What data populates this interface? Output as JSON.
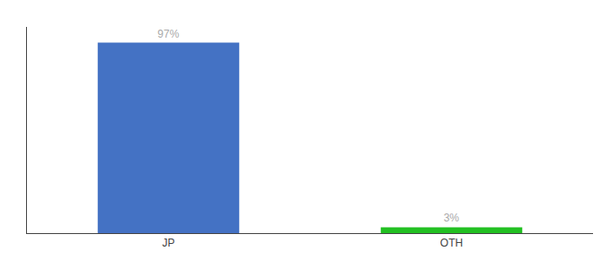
{
  "chart_data": {
    "type": "bar",
    "categories": [
      "JP",
      "OTH"
    ],
    "values": [
      97,
      3
    ],
    "value_labels": [
      "97%",
      "3%"
    ],
    "colors": [
      "#4472c4",
      "#22c022"
    ],
    "ylim": [
      0,
      105
    ],
    "grid": false,
    "tick_labels": "x"
  }
}
